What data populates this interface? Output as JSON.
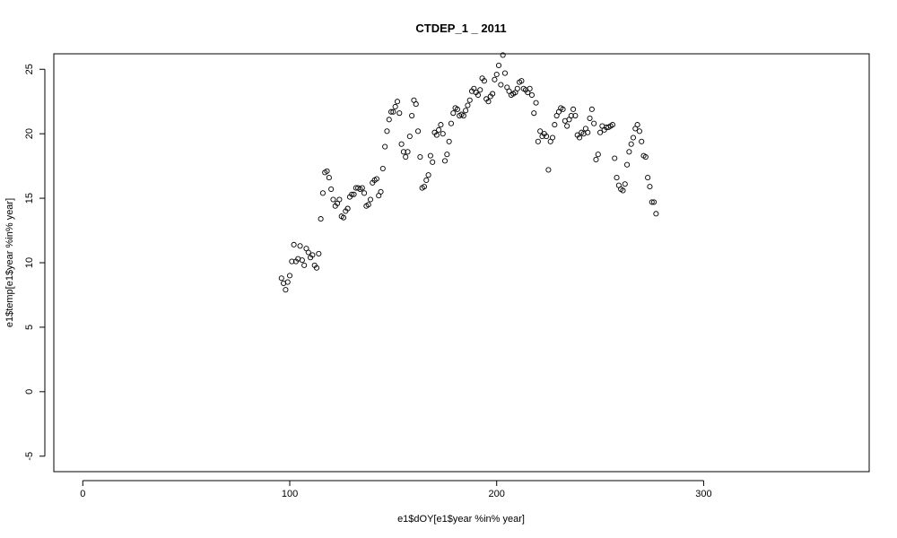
{
  "chart_data": {
    "type": "scatter",
    "title": "CTDEP_1 _ 2011",
    "xlabel": "e1$dOY[e1$year %in% year]",
    "ylabel": "e1$temp[e1$year %in% year]",
    "xlim": [
      -14,
      380
    ],
    "ylim": [
      -6.2,
      26.2
    ],
    "x_ticks": [
      0,
      100,
      200,
      300
    ],
    "y_ticks": [
      -5,
      0,
      5,
      10,
      15,
      20,
      25
    ],
    "grid": false,
    "legend": "none",
    "marker": "open-circle",
    "color": "#000000",
    "points": [
      [
        96,
        8.8
      ],
      [
        97,
        8.4
      ],
      [
        98,
        7.9
      ],
      [
        99,
        8.5
      ],
      [
        100,
        9.0
      ],
      [
        101,
        10.1
      ],
      [
        102,
        11.4
      ],
      [
        103,
        10.1
      ],
      [
        104,
        10.3
      ],
      [
        105,
        11.3
      ],
      [
        106,
        10.2
      ],
      [
        107,
        9.8
      ],
      [
        108,
        11.1
      ],
      [
        109,
        10.8
      ],
      [
        110,
        10.4
      ],
      [
        111,
        10.6
      ],
      [
        112,
        9.8
      ],
      [
        113,
        9.6
      ],
      [
        114,
        10.7
      ],
      [
        115,
        13.4
      ],
      [
        116,
        15.4
      ],
      [
        117,
        17.0
      ],
      [
        118,
        17.1
      ],
      [
        119,
        16.6
      ],
      [
        120,
        15.7
      ],
      [
        121,
        14.9
      ],
      [
        122,
        14.4
      ],
      [
        123,
        14.6
      ],
      [
        124,
        14.9
      ],
      [
        125,
        13.6
      ],
      [
        126,
        13.5
      ],
      [
        127,
        14.0
      ],
      [
        128,
        14.2
      ],
      [
        129,
        15.1
      ],
      [
        130,
        15.3
      ],
      [
        131,
        15.3
      ],
      [
        132,
        15.8
      ],
      [
        133,
        15.8
      ],
      [
        134,
        15.7
      ],
      [
        135,
        15.8
      ],
      [
        136,
        15.4
      ],
      [
        137,
        14.4
      ],
      [
        138,
        14.5
      ],
      [
        139,
        14.9
      ],
      [
        140,
        16.2
      ],
      [
        141,
        16.4
      ],
      [
        142,
        16.5
      ],
      [
        143,
        15.2
      ],
      [
        144,
        15.5
      ],
      [
        145,
        17.3
      ],
      [
        146,
        19.0
      ],
      [
        147,
        20.2
      ],
      [
        148,
        21.1
      ],
      [
        149,
        21.7
      ],
      [
        150,
        21.7
      ],
      [
        151,
        22.1
      ],
      [
        152,
        22.5
      ],
      [
        153,
        21.6
      ],
      [
        154,
        19.2
      ],
      [
        155,
        18.6
      ],
      [
        156,
        18.2
      ],
      [
        157,
        18.6
      ],
      [
        158,
        19.8
      ],
      [
        159,
        21.4
      ],
      [
        160,
        22.6
      ],
      [
        161,
        22.3
      ],
      [
        162,
        20.2
      ],
      [
        163,
        18.2
      ],
      [
        164,
        15.8
      ],
      [
        165,
        15.9
      ],
      [
        166,
        16.4
      ],
      [
        167,
        16.8
      ],
      [
        168,
        18.3
      ],
      [
        169,
        17.8
      ],
      [
        170,
        20.1
      ],
      [
        171,
        19.9
      ],
      [
        172,
        20.3
      ],
      [
        173,
        20.7
      ],
      [
        174,
        20.0
      ],
      [
        175,
        17.9
      ],
      [
        176,
        18.4
      ],
      [
        177,
        19.4
      ],
      [
        178,
        20.8
      ],
      [
        179,
        21.6
      ],
      [
        180,
        22.0
      ],
      [
        181,
        21.9
      ],
      [
        182,
        21.4
      ],
      [
        183,
        21.5
      ],
      [
        184,
        21.4
      ],
      [
        185,
        21.8
      ],
      [
        186,
        22.2
      ],
      [
        187,
        22.6
      ],
      [
        188,
        23.3
      ],
      [
        189,
        23.5
      ],
      [
        190,
        23.2
      ],
      [
        191,
        23.0
      ],
      [
        192,
        23.4
      ],
      [
        193,
        24.3
      ],
      [
        194,
        24.1
      ],
      [
        195,
        22.7
      ],
      [
        196,
        22.5
      ],
      [
        197,
        22.9
      ],
      [
        198,
        23.1
      ],
      [
        199,
        24.2
      ],
      [
        200,
        24.6
      ],
      [
        201,
        25.3
      ],
      [
        202,
        23.8
      ],
      [
        203,
        26.1
      ],
      [
        204,
        24.7
      ],
      [
        205,
        23.6
      ],
      [
        206,
        23.3
      ],
      [
        207,
        23.0
      ],
      [
        208,
        23.1
      ],
      [
        209,
        23.2
      ],
      [
        210,
        23.5
      ],
      [
        211,
        24.0
      ],
      [
        212,
        24.1
      ],
      [
        213,
        23.5
      ],
      [
        214,
        23.4
      ],
      [
        215,
        23.2
      ],
      [
        216,
        23.5
      ],
      [
        217,
        23.0
      ],
      [
        218,
        21.6
      ],
      [
        219,
        22.4
      ],
      [
        220,
        19.4
      ],
      [
        221,
        20.2
      ],
      [
        222,
        19.8
      ],
      [
        223,
        20.0
      ],
      [
        224,
        19.8
      ],
      [
        225,
        17.2
      ],
      [
        226,
        19.4
      ],
      [
        227,
        19.7
      ],
      [
        228,
        20.7
      ],
      [
        229,
        21.4
      ],
      [
        230,
        21.7
      ],
      [
        231,
        22.0
      ],
      [
        232,
        21.9
      ],
      [
        233,
        21.0
      ],
      [
        234,
        20.6
      ],
      [
        235,
        21.1
      ],
      [
        236,
        21.4
      ],
      [
        237,
        21.9
      ],
      [
        238,
        21.4
      ],
      [
        239,
        19.9
      ],
      [
        240,
        19.7
      ],
      [
        241,
        20.1
      ],
      [
        242,
        20.0
      ],
      [
        243,
        20.4
      ],
      [
        244,
        20.1
      ],
      [
        245,
        21.2
      ],
      [
        246,
        21.9
      ],
      [
        247,
        20.8
      ],
      [
        248,
        18.0
      ],
      [
        249,
        18.4
      ],
      [
        250,
        20.1
      ],
      [
        251,
        20.6
      ],
      [
        252,
        20.3
      ],
      [
        253,
        20.5
      ],
      [
        254,
        20.5
      ],
      [
        255,
        20.6
      ],
      [
        256,
        20.7
      ],
      [
        257,
        18.1
      ],
      [
        258,
        16.6
      ],
      [
        259,
        16.0
      ],
      [
        260,
        15.7
      ],
      [
        261,
        15.6
      ],
      [
        262,
        16.1
      ],
      [
        263,
        17.6
      ],
      [
        264,
        18.6
      ],
      [
        265,
        19.2
      ],
      [
        266,
        19.7
      ],
      [
        267,
        20.4
      ],
      [
        268,
        20.7
      ],
      [
        269,
        20.2
      ],
      [
        270,
        19.4
      ],
      [
        271,
        18.3
      ],
      [
        272,
        18.2
      ],
      [
        273,
        16.6
      ],
      [
        274,
        15.9
      ],
      [
        275,
        14.7
      ],
      [
        276,
        14.7
      ],
      [
        277,
        13.8
      ]
    ]
  }
}
